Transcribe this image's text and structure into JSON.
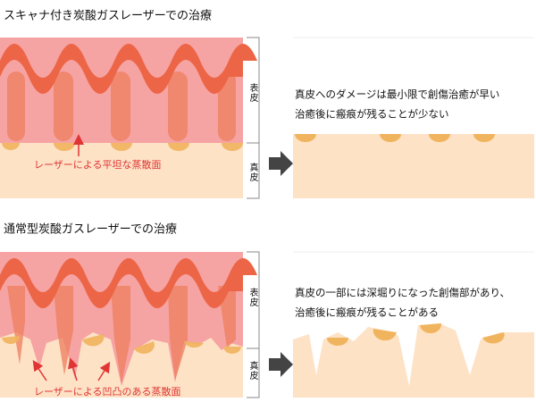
{
  "sections": [
    {
      "title": "スキャナ付き炭酸ガスレーザーでの治療",
      "layers": {
        "epidermis": "表皮",
        "dermis": "真皮"
      },
      "annotation": "レーザーによる平坦な蒸散面",
      "result_lines": [
        "真皮へのダメージは最小限で創傷治癒が早い",
        "治癒後に瘢痕が残ることが少ない"
      ]
    },
    {
      "title": "通常型炭酸ガスレーザーでの治療",
      "layers": {
        "epidermis": "表皮",
        "dermis": "真皮"
      },
      "annotation": "レーザーによる凹凸のある蒸散面",
      "result_lines": [
        "真皮の一部には深堀りになった創傷部があり、",
        "治癒後に瘢痕が残ることがある"
      ]
    }
  ]
}
